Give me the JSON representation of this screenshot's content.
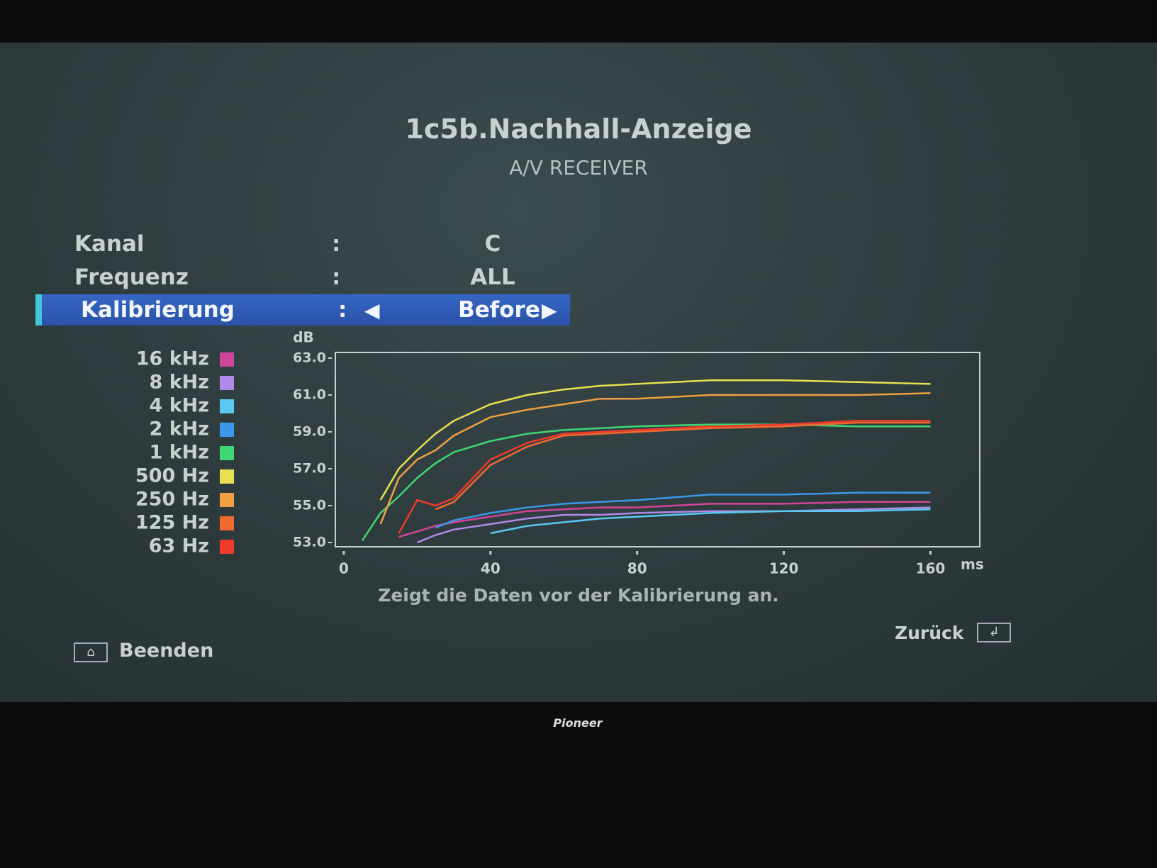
{
  "header": {
    "title": "1c5b.Nachhall-Anzeige",
    "subtitle": "A/V RECEIVER"
  },
  "menu": [
    {
      "label": "Kanal",
      "separator": ":",
      "value": "C"
    },
    {
      "label": "Frequenz",
      "separator": ":",
      "value": "ALL"
    },
    {
      "label": "Kalibrierung",
      "separator": ":",
      "value": "Before"
    }
  ],
  "chart_data": {
    "type": "line",
    "y_label": "dB",
    "x_label": "ms",
    "x": [
      5,
      10,
      15,
      20,
      25,
      30,
      40,
      50,
      60,
      70,
      80,
      100,
      120,
      140,
      160
    ],
    "xlim": [
      0,
      175
    ],
    "xticks": [
      0,
      40,
      80,
      120,
      160
    ],
    "ylim": [
      53,
      63
    ],
    "yticks": [
      {
        "value": 53,
        "label": "53.0"
      },
      {
        "value": 55,
        "label": "55.0"
      },
      {
        "value": 57,
        "label": "57.0"
      },
      {
        "value": 59,
        "label": "59.0"
      },
      {
        "value": 61,
        "label": "61.0"
      },
      {
        "value": 63,
        "label": "63.0"
      }
    ],
    "series": [
      {
        "name": "16 kHz",
        "color": "#d0459a",
        "values": [
          null,
          null,
          53.3,
          53.6,
          53.9,
          54.1,
          54.4,
          54.7,
          54.8,
          54.9,
          54.9,
          55.1,
          55.1,
          55.2,
          55.2
        ]
      },
      {
        "name": "8 kHz",
        "color": "#b08ae8",
        "values": [
          null,
          null,
          null,
          53.0,
          53.4,
          53.7,
          54.0,
          54.3,
          54.5,
          54.5,
          54.6,
          54.7,
          54.7,
          54.8,
          54.9
        ]
      },
      {
        "name": "4 kHz",
        "color": "#5ac8f0",
        "values": [
          null,
          null,
          null,
          null,
          null,
          null,
          53.5,
          53.9,
          54.1,
          54.3,
          54.4,
          54.6,
          54.7,
          54.7,
          54.8
        ]
      },
      {
        "name": "2 kHz",
        "color": "#3a98e8",
        "values": [
          null,
          null,
          null,
          null,
          53.8,
          54.2,
          54.6,
          54.9,
          55.1,
          55.2,
          55.3,
          55.6,
          55.6,
          55.7,
          55.7
        ]
      },
      {
        "name": "1 kHz",
        "color": "#3ed873",
        "values": [
          53.1,
          54.6,
          55.5,
          56.5,
          57.3,
          57.9,
          58.5,
          58.9,
          59.1,
          59.2,
          59.3,
          59.4,
          59.4,
          59.3,
          59.3
        ]
      },
      {
        "name": "500 Hz",
        "color": "#e8e050",
        "values": [
          null,
          55.3,
          57.0,
          58.0,
          58.9,
          59.6,
          60.5,
          61.0,
          61.3,
          61.5,
          61.6,
          61.8,
          61.8,
          61.7,
          61.6
        ]
      },
      {
        "name": "250 Hz",
        "color": "#f0a040",
        "values": [
          null,
          54.0,
          56.5,
          57.5,
          58.0,
          58.8,
          59.8,
          60.2,
          60.5,
          60.8,
          60.8,
          61.0,
          61.0,
          61.0,
          61.1
        ]
      },
      {
        "name": "125 Hz",
        "color": "#f06a30",
        "values": [
          null,
          null,
          null,
          null,
          54.8,
          55.2,
          57.2,
          58.2,
          58.8,
          58.9,
          59.0,
          59.2,
          59.3,
          59.5,
          59.5
        ]
      },
      {
        "name": "63 Hz",
        "color": "#f03a2a",
        "values": [
          null,
          null,
          53.5,
          55.3,
          55.0,
          55.4,
          57.5,
          58.4,
          58.9,
          59.0,
          59.1,
          59.3,
          59.4,
          59.6,
          59.6
        ]
      }
    ]
  },
  "description": "Zeigt die Daten vor der Kalibrierung an.",
  "footer": {
    "exit_key": "⌂",
    "exit": "Beenden",
    "back": "Zurück",
    "back_key": "↲"
  }
}
